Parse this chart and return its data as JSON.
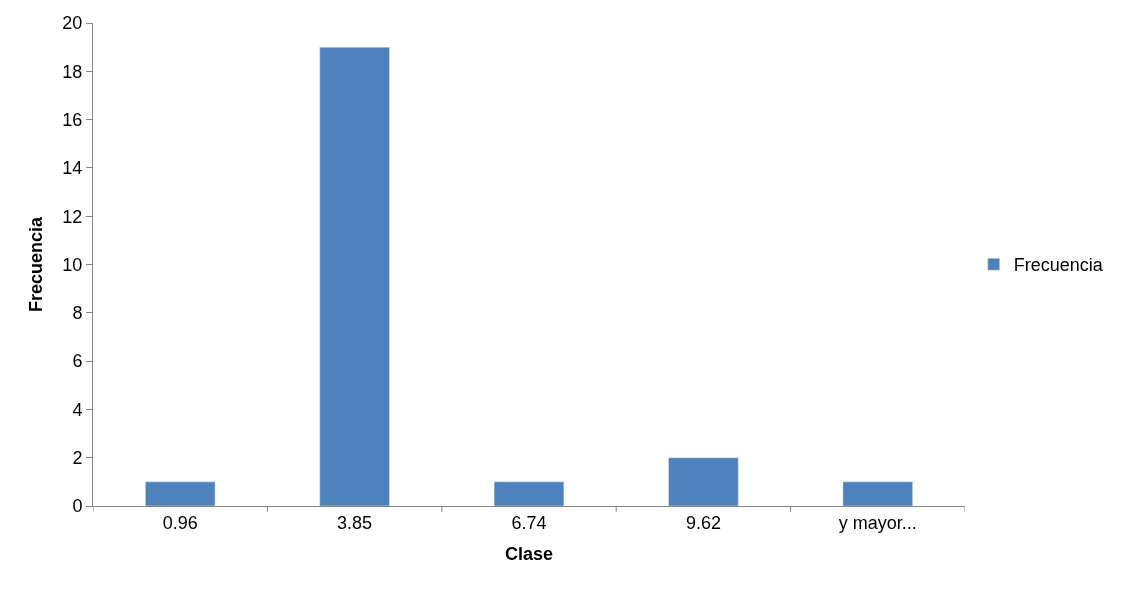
{
  "chart_data": {
    "type": "bar",
    "xlabel": "Clase",
    "ylabel": "Frecuencia",
    "categories": [
      "0.96",
      "3.85",
      "6.74",
      "9.62",
      "y mayor..."
    ],
    "series": [
      {
        "name": "Frecuencia",
        "color": "#4f81bd",
        "values": [
          1,
          19,
          1,
          2,
          1
        ]
      }
    ],
    "ylim": [
      0,
      20
    ],
    "yticks": [
      0,
      2,
      4,
      6,
      8,
      10,
      12,
      14,
      16,
      18,
      20
    ],
    "grid": false,
    "legend": "right"
  }
}
